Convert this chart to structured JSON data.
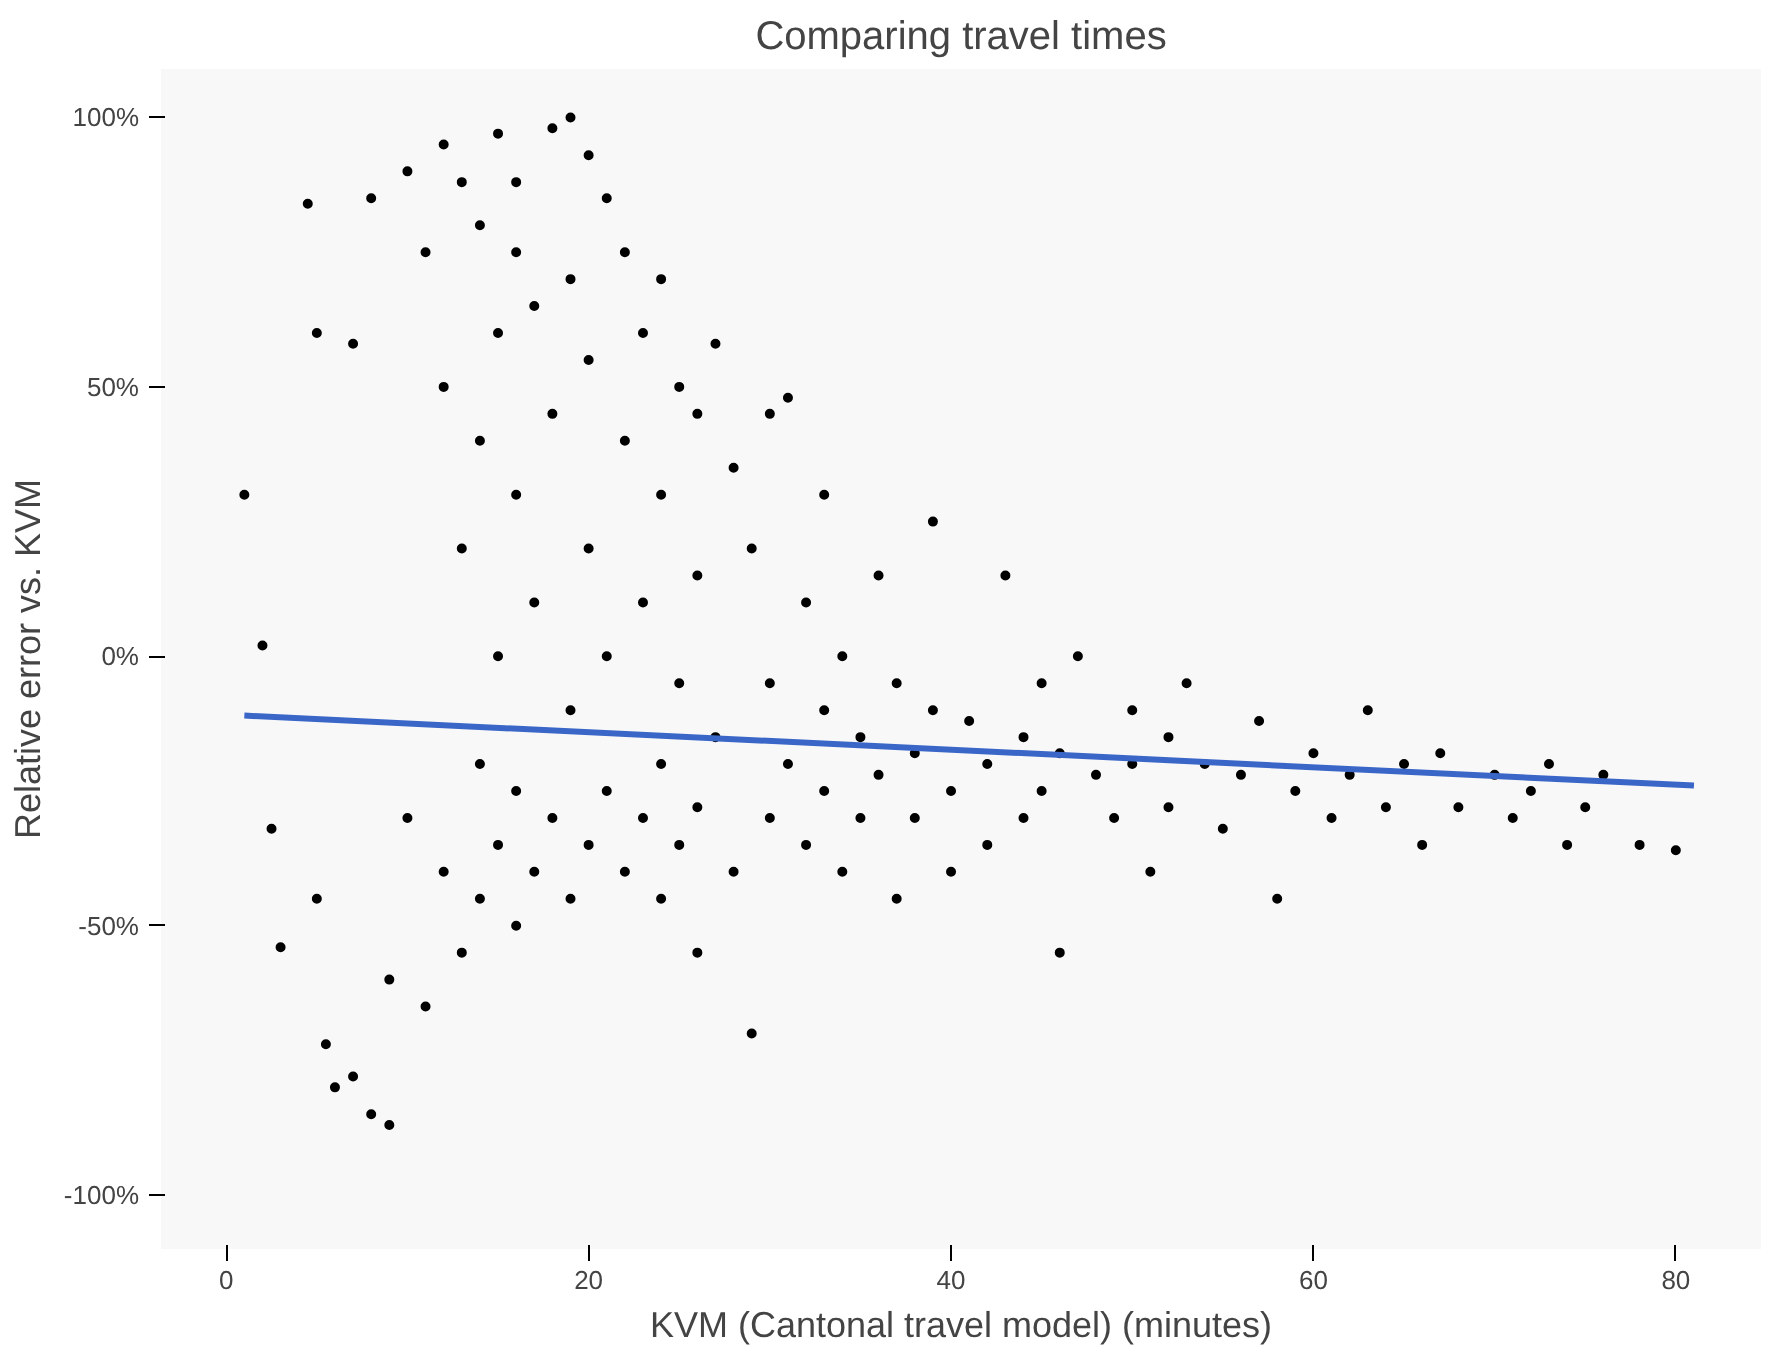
{
  "chart_data": {
    "type": "scatter",
    "title": "Comparing travel times",
    "xlabel": "KVM (Cantonal travel model) (minutes)",
    "ylabel": "Relative error vs. KVM",
    "xlim": [
      -3.6,
      84.7
    ],
    "xticks": [
      0,
      20,
      40,
      60,
      80
    ],
    "ylim": [
      -110,
      109
    ],
    "yticks": [
      {
        "value": -100,
        "label": "-100%"
      },
      {
        "value": -50,
        "label": "-50%"
      },
      {
        "value": 0,
        "label": "0%"
      },
      {
        "value": 50,
        "label": "50%"
      },
      {
        "value": 100,
        "label": "100%"
      }
    ],
    "grid": false,
    "series": [
      {
        "marker": "circle",
        "color": "#000000",
        "x": [
          1,
          2,
          2.5,
          3,
          4.5,
          5,
          5,
          5.5,
          6,
          7,
          7,
          8,
          8,
          9,
          9,
          10,
          10,
          11,
          11,
          12,
          12,
          12,
          13,
          13,
          13,
          14,
          14,
          14,
          14,
          15,
          15,
          15,
          15,
          16,
          16,
          16,
          16,
          16,
          17,
          17,
          17,
          18,
          18,
          18,
          19,
          19,
          19,
          19,
          20,
          20,
          20,
          20,
          21,
          21,
          21,
          22,
          22,
          22,
          23,
          23,
          23,
          24,
          24,
          24,
          24,
          25,
          25,
          25,
          26,
          26,
          26,
          26,
          27,
          27,
          28,
          28,
          29,
          29,
          30,
          30,
          30,
          31,
          31,
          32,
          32,
          33,
          33,
          33,
          34,
          34,
          35,
          35,
          36,
          36,
          37,
          37,
          38,
          38,
          39,
          39,
          40,
          40,
          41,
          42,
          42,
          43,
          44,
          44,
          45,
          45,
          46,
          46,
          47,
          48,
          49,
          50,
          50,
          51,
          52,
          52,
          53,
          54,
          55,
          56,
          57,
          58,
          59,
          60,
          61,
          62,
          63,
          64,
          65,
          66,
          67,
          68,
          70,
          71,
          72,
          73,
          74,
          75,
          76,
          78,
          80
        ],
        "values": [
          30,
          2,
          -32,
          -54,
          84,
          60,
          -45,
          -72,
          -80,
          58,
          -78,
          85,
          -85,
          -87,
          -60,
          90,
          -30,
          75,
          -65,
          95,
          50,
          -40,
          88,
          20,
          -55,
          80,
          40,
          -20,
          -45,
          97,
          60,
          0,
          -35,
          88,
          75,
          30,
          -25,
          -50,
          65,
          10,
          -40,
          98,
          45,
          -30,
          100,
          70,
          -10,
          -45,
          93,
          55,
          20,
          -35,
          85,
          0,
          -25,
          75,
          40,
          -40,
          60,
          10,
          -30,
          70,
          30,
          -20,
          -45,
          50,
          -5,
          -35,
          45,
          15,
          -28,
          -55,
          58,
          -15,
          35,
          -40,
          -70,
          20,
          45,
          -5,
          -30,
          48,
          -20,
          10,
          -35,
          30,
          -10,
          -25,
          0,
          -40,
          -15,
          -30,
          15,
          -22,
          -5,
          -45,
          -18,
          -30,
          25,
          -10,
          -25,
          -40,
          -12,
          -20,
          -35,
          15,
          -15,
          -30,
          -5,
          -25,
          -55,
          -18,
          0,
          -22,
          -30,
          -10,
          -20,
          -40,
          -15,
          -28,
          -5,
          -20,
          -32,
          -22,
          -12,
          -45,
          -25,
          -18,
          -30,
          -22,
          -10,
          -28,
          -20,
          -35,
          -18,
          -28,
          -22,
          -30,
          -25,
          -20,
          -35,
          -28,
          -22,
          -35,
          -36
        ]
      },
      {
        "type": "line",
        "color": "#3a66c8",
        "x": [
          1,
          81
        ],
        "values": [
          -11,
          -24
        ]
      }
    ]
  }
}
